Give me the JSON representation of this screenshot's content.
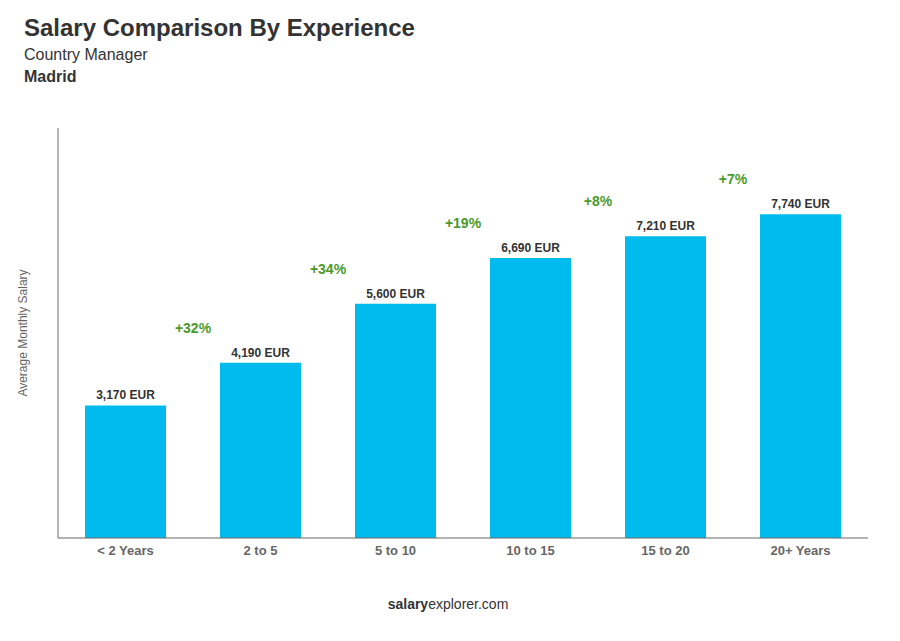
{
  "chart_data": {
    "type": "bar",
    "title": "Salary Comparison By Experience",
    "subtitle": [
      "Country Manager",
      "Madrid"
    ],
    "categories": [
      "< 2 Years",
      "2 to 5",
      "5 to 10",
      "10 to 15",
      "15 to 20",
      "20+ Years"
    ],
    "values": [
      3170,
      4190,
      5600,
      6690,
      7210,
      7740
    ],
    "value_labels": [
      "3,170 EUR",
      "4,190 EUR",
      "5,600 EUR",
      "6,690 EUR",
      "7,210 EUR",
      "7,740 EUR"
    ],
    "data_labels": true,
    "annotations": [
      "+32%",
      "+34%",
      "+19%",
      "+8%",
      "+7%"
    ],
    "ylabel": "Average Monthly Salary",
    "source": [
      "salary",
      "explorer.com"
    ],
    "ylim": [
      0,
      9800
    ],
    "tick_labels": "x",
    "grid": false,
    "color": "#00bbee"
  }
}
